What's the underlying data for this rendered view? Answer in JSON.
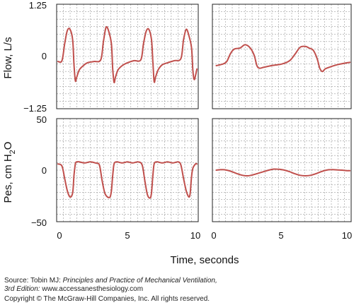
{
  "figure": {
    "x_axis_title": "Time, seconds",
    "flow_axis_title": "Flow, L/s",
    "pes_axis_title_main": "Pes, cm H",
    "pes_axis_title_sub": "2",
    "pes_axis_title_end": "O"
  },
  "source": {
    "prefix": "Source: Tobin MJ: ",
    "book_title": "Principles and Practice of Mechanical Ventilation,",
    "edition": "3rd Edition:",
    "website": " www.accessanesthesiology.com",
    "copyright": "Copyright © The McGraw-Hill Companies, Inc. All rights reserved."
  },
  "colors": {
    "trace": "#c0504d",
    "grid": "#9a9a9a",
    "frame": "#222222"
  },
  "chart_data": [
    {
      "type": "line",
      "panel": "flow-left",
      "ylabel": "Flow, L/s",
      "ylim": [
        -1.25,
        1.25
      ],
      "xlim": [
        -0.3,
        10.3
      ],
      "yticks": [
        "1.25",
        "0",
        "−1.25"
      ],
      "grid": true,
      "x": [
        -0.2,
        0.1,
        0.3,
        0.5,
        0.7,
        0.9,
        1.0,
        1.1,
        1.2,
        1.4,
        1.7,
        2.0,
        2.5,
        3.0,
        3.2,
        3.4,
        3.6,
        3.8,
        3.9,
        4.0,
        4.1,
        4.3,
        4.6,
        5.0,
        5.5,
        6.0,
        6.2,
        6.4,
        6.6,
        6.8,
        6.9,
        7.0,
        7.1,
        7.3,
        7.6,
        8.0,
        8.5,
        9.0,
        9.2,
        9.4,
        9.6,
        9.8,
        9.9,
        10.0,
        10.1,
        10.2
      ],
      "y": [
        -0.12,
        -0.1,
        0.3,
        0.62,
        0.65,
        0.4,
        -0.2,
        -0.58,
        -0.5,
        -0.32,
        -0.22,
        -0.15,
        -0.12,
        -0.08,
        0.35,
        0.7,
        0.6,
        0.3,
        -0.3,
        -0.62,
        -0.5,
        -0.32,
        -0.22,
        -0.15,
        -0.1,
        -0.08,
        0.3,
        0.6,
        0.65,
        0.4,
        -0.1,
        -0.6,
        -0.5,
        -0.32,
        -0.2,
        -0.15,
        -0.1,
        -0.05,
        0.4,
        0.65,
        0.5,
        0.2,
        -0.35,
        -0.55,
        -0.45,
        -0.3
      ]
    },
    {
      "type": "line",
      "panel": "flow-right",
      "ylim": [
        -1.25,
        1.25
      ],
      "xlim": [
        -0.3,
        10.3
      ],
      "grid": true,
      "x": [
        0,
        0.5,
        0.8,
        1.1,
        1.4,
        1.8,
        2.2,
        2.6,
        2.9,
        3.1,
        3.3,
        3.6,
        4.2,
        5.0,
        5.6,
        6.0,
        6.4,
        6.8,
        7.1,
        7.4,
        7.7,
        7.9,
        8.1,
        8.3,
        8.6,
        9.2,
        9.8,
        10.2
      ],
      "y": [
        -0.22,
        -0.18,
        -0.12,
        0.08,
        0.18,
        0.2,
        0.28,
        0.2,
        0.02,
        -0.22,
        -0.28,
        -0.26,
        -0.22,
        -0.18,
        -0.1,
        0.05,
        0.22,
        0.24,
        0.2,
        0.15,
        -0.05,
        -0.28,
        -0.36,
        -0.3,
        -0.26,
        -0.2,
        -0.16,
        -0.14
      ]
    },
    {
      "type": "line",
      "panel": "pes-left",
      "ylabel": "Pes, cm H2O",
      "ylim": [
        -50,
        50
      ],
      "xlim": [
        -0.3,
        10.3
      ],
      "yticks": [
        "50",
        "0",
        "−50"
      ],
      "xticks": [
        "0",
        "5",
        "10"
      ],
      "grid": true,
      "x": [
        -0.2,
        0.1,
        0.3,
        0.5,
        0.7,
        0.9,
        1.0,
        1.1,
        1.2,
        1.4,
        1.8,
        2.2,
        2.6,
        2.9,
        3.1,
        3.3,
        3.5,
        3.7,
        3.8,
        3.9,
        4.0,
        4.2,
        4.6,
        5.0,
        5.4,
        5.8,
        6.1,
        6.3,
        6.5,
        6.7,
        6.8,
        6.9,
        7.0,
        7.2,
        7.6,
        8.0,
        8.4,
        8.8,
        9.0,
        9.2,
        9.4,
        9.6,
        9.7,
        9.8,
        9.9,
        10.1,
        10.2
      ],
      "y": [
        6,
        4,
        -8,
        -20,
        -26,
        -22,
        -5,
        6,
        8,
        8,
        7,
        8,
        7,
        5,
        -10,
        -22,
        -26,
        -26,
        -20,
        -5,
        6,
        8,
        7,
        8,
        7,
        8,
        5,
        -10,
        -24,
        -27,
        -22,
        -6,
        6,
        8,
        7,
        8,
        7,
        8,
        5,
        -8,
        -20,
        -26,
        -22,
        -6,
        2,
        6,
        6
      ]
    },
    {
      "type": "line",
      "panel": "pes-right",
      "ylim": [
        -50,
        50
      ],
      "xlim": [
        -0.3,
        10.3
      ],
      "xticks": [
        "0",
        "5",
        "10"
      ],
      "grid": true,
      "x": [
        0,
        0.4,
        0.8,
        1.2,
        1.6,
        2.0,
        2.4,
        2.8,
        3.2,
        3.6,
        4.0,
        4.4,
        4.8,
        5.2,
        5.6,
        6.0,
        6.4,
        6.8,
        7.2,
        7.6,
        8.0,
        8.4,
        8.8,
        9.2,
        9.6,
        10.0,
        10.2
      ],
      "y": [
        0,
        0.5,
        0,
        -1.5,
        -3.5,
        -5,
        -5.5,
        -4.5,
        -3,
        -1.5,
        0,
        1,
        0.8,
        0,
        -1.5,
        -3.5,
        -5,
        -5.5,
        -5,
        -3.5,
        -1.5,
        0,
        0.5,
        0.3,
        0,
        -0.5,
        -0.5
      ]
    }
  ]
}
